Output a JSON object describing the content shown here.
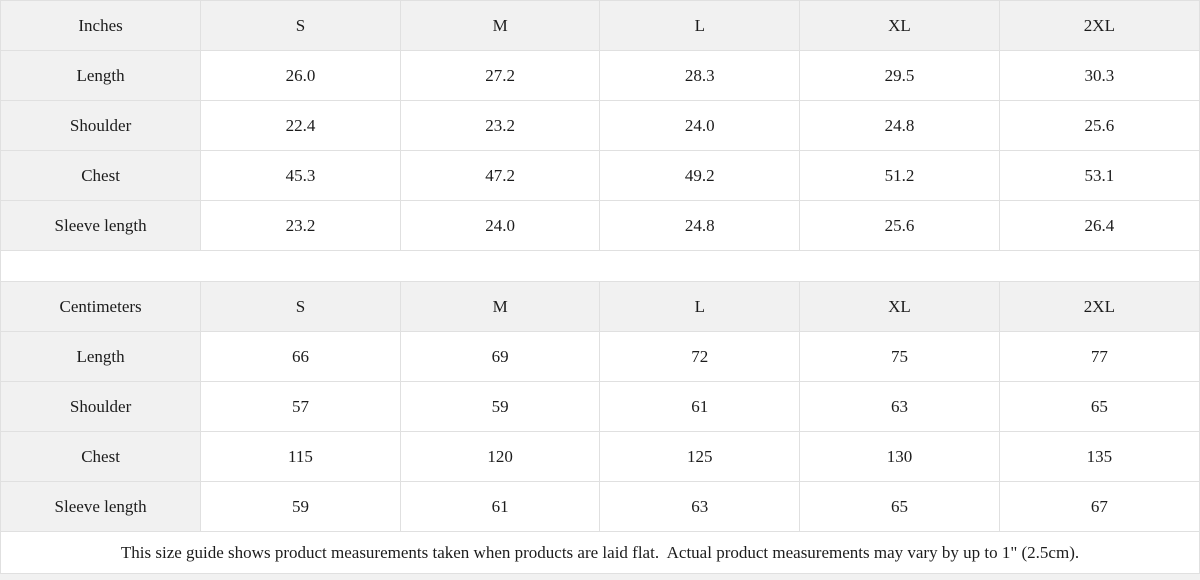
{
  "theme": {
    "page_background": "#f1f1f1",
    "cell_background": "#ffffff",
    "header_background": "#f1f1f1",
    "border_color": "#e0e0e0",
    "text_color": "#1c1c1c"
  },
  "size_guide": {
    "tables": [
      {
        "unit_label": "Inches",
        "sizes": [
          "S",
          "M",
          "L",
          "XL",
          "2XL"
        ],
        "rows": [
          {
            "label": "Length",
            "values": [
              "26.0",
              "27.2",
              "28.3",
              "29.5",
              "30.3"
            ]
          },
          {
            "label": "Shoulder",
            "values": [
              "22.4",
              "23.2",
              "24.0",
              "24.8",
              "25.6"
            ]
          },
          {
            "label": "Chest",
            "values": [
              "45.3",
              "47.2",
              "49.2",
              "51.2",
              "53.1"
            ]
          },
          {
            "label": "Sleeve length",
            "values": [
              "23.2",
              "24.0",
              "24.8",
              "25.6",
              "26.4"
            ]
          }
        ]
      },
      {
        "unit_label": "Centimeters",
        "sizes": [
          "S",
          "M",
          "L",
          "XL",
          "2XL"
        ],
        "rows": [
          {
            "label": "Length",
            "values": [
              "66",
              "69",
              "72",
              "75",
              "77"
            ]
          },
          {
            "label": "Shoulder",
            "values": [
              "57",
              "59",
              "61",
              "63",
              "65"
            ]
          },
          {
            "label": "Chest",
            "values": [
              "115",
              "120",
              "125",
              "130",
              "135"
            ]
          },
          {
            "label": "Sleeve length",
            "values": [
              "59",
              "61",
              "63",
              "65",
              "67"
            ]
          }
        ]
      }
    ],
    "footnote": "This size guide shows product measurements taken when products are laid flat.  Actual product measurements may vary by up to 1\" (2.5cm)."
  }
}
